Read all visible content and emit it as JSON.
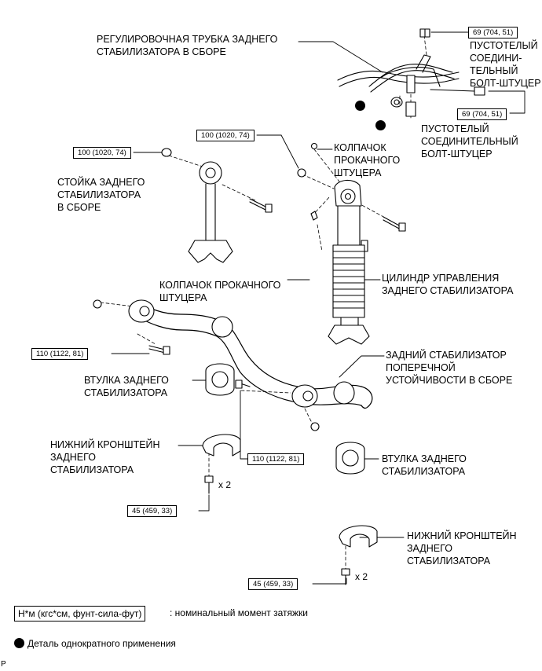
{
  "labels": {
    "rear_stab_tube": [
      "РЕГУЛИРОВОЧНАЯ ТРУБКА ЗАДНЕГО",
      "СТАБИЛИЗАТОРА В СБОРЕ"
    ],
    "hollow_bolt_1": [
      "ПУСТОТЕЛЫЙ",
      "СОЕДИНИ-",
      "ТЕЛЬНЫЙ",
      "БОЛТ-ШТУЦЕР"
    ],
    "hollow_bolt_2": [
      "ПУСТОТЕЛЫЙ",
      "СОЕДИНИТЕЛЬНЫЙ",
      "БОЛТ-ШТУЦЕР"
    ],
    "bleeder_cap_1": [
      "КОЛПАЧОК",
      "ПРОКАЧНОГО",
      "ШТУЦЕРА"
    ],
    "stab_link": [
      "СТОЙКА ЗАДНЕГО",
      "СТАБИЛИЗАТОРА",
      "В СБОРЕ"
    ],
    "bleeder_cap_2": [
      "КОЛПАЧОК ПРОКАЧНОГО",
      "ШТУЦЕРА"
    ],
    "control_cylinder": [
      "ЦИЛИНДР УПРАВЛЕНИЯ",
      "ЗАДНЕГО СТАБИЛИЗАТОРА"
    ],
    "stab_bar": [
      "ЗАДНИЙ СТАБИЛИЗАТОР",
      "ПОПЕРЕЧНОЙ",
      "УСТОЙЧИВОСТИ В СБОРЕ"
    ],
    "bushing_1": [
      "ВТУЛКА ЗАДНЕГО",
      "СТАБИЛИЗАТОРА"
    ],
    "bushing_2": [
      "ВТУЛКА ЗАДНЕГО",
      "СТАБИЛИЗАТОРА"
    ],
    "bracket_1": [
      "НИЖНИЙ КРОНШТЕЙН",
      "ЗАДНЕГО",
      "СТАБИЛИЗАТОРА"
    ],
    "bracket_2": [
      "НИЖНИЙ КРОНШТЕЙН",
      "ЗАДНЕГО",
      "СТАБИЛИЗАТОРА"
    ]
  },
  "torques": {
    "t1": "69 (704, 51)",
    "t2": "69 (704, 51)",
    "t3": "100 (1020, 74)",
    "t4": "100 (1020, 74)",
    "t5": "110 (1122, 81)",
    "t6": "110 (1122, 81)",
    "t7": "45 (459, 33)",
    "t8": "45 (459, 33)"
  },
  "multipliers": {
    "m1": "x 2",
    "m2": "x 2"
  },
  "legend": {
    "torque_unit": "Н*м (кгс*см, фунт-сила-фут)",
    "torque_desc": ": номинальный момент затяжки",
    "single_use": "Деталь однократного применения"
  },
  "corner_mark": "P",
  "colors": {
    "line": "#000000",
    "background": "#ffffff"
  }
}
